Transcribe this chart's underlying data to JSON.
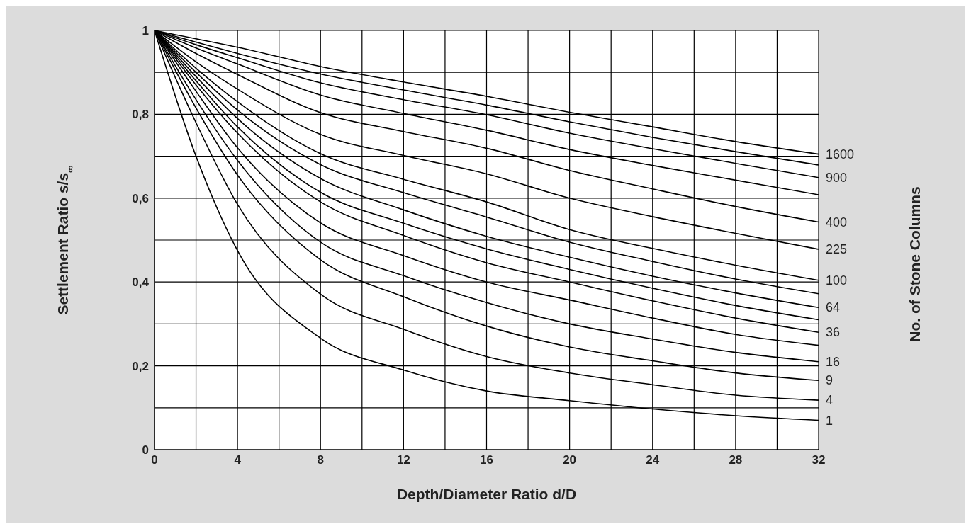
{
  "chart_data": {
    "type": "line",
    "xlabel": "Depth/Diameter Ratio d/D",
    "ylabel": "Settlement Ratio s/s$_{∞}$",
    "legend_title": "No. of Stone Columns",
    "x": [
      0,
      2,
      4,
      8,
      12,
      16,
      20,
      24,
      28,
      32
    ],
    "series": [
      {
        "name": "1600",
        "color": "#000000",
        "values": [
          1,
          0.98,
          0.96,
          0.914,
          0.877,
          0.843,
          0.805,
          0.77,
          0.735,
          0.705
        ]
      },
      {
        "color": "#000000",
        "values": [
          1,
          0.972,
          0.945,
          0.896,
          0.858,
          0.822,
          0.782,
          0.745,
          0.711,
          0.679
        ]
      },
      {
        "name": "900",
        "color": "#000000",
        "values": [
          1,
          0.966,
          0.935,
          0.875,
          0.835,
          0.799,
          0.755,
          0.718,
          0.683,
          0.649
        ]
      },
      {
        "color": "#000000",
        "values": [
          1,
          0.958,
          0.92,
          0.846,
          0.802,
          0.762,
          0.716,
          0.678,
          0.643,
          0.608
        ]
      },
      {
        "name": "400",
        "color": "#000000",
        "values": [
          1,
          0.945,
          0.895,
          0.804,
          0.759,
          0.719,
          0.666,
          0.622,
          0.58,
          0.543
        ]
      },
      {
        "name": "225",
        "color": "#000000",
        "values": [
          1,
          0.925,
          0.86,
          0.752,
          0.702,
          0.658,
          0.6,
          0.556,
          0.516,
          0.478
        ]
      },
      {
        "name": "100",
        "color": "#000000",
        "values": [
          1,
          0.91,
          0.83,
          0.706,
          0.645,
          0.591,
          0.525,
          0.48,
          0.44,
          0.404
        ]
      },
      {
        "color": "#000000",
        "values": [
          1,
          0.9,
          0.81,
          0.68,
          0.613,
          0.555,
          0.495,
          0.449,
          0.407,
          0.372
        ]
      },
      {
        "name": "64",
        "color": "#000000",
        "values": [
          1,
          0.89,
          0.79,
          0.647,
          0.572,
          0.509,
          0.459,
          0.414,
          0.374,
          0.339
        ]
      },
      {
        "color": "#000000",
        "values": [
          1,
          0.88,
          0.77,
          0.614,
          0.54,
          0.479,
          0.43,
          0.385,
          0.344,
          0.31
        ]
      },
      {
        "name": "36",
        "color": "#000000",
        "values": [
          1,
          0.87,
          0.755,
          0.591,
          0.511,
          0.446,
          0.4,
          0.355,
          0.314,
          0.28
        ]
      },
      {
        "color": "#000000",
        "values": [
          1,
          0.855,
          0.72,
          0.541,
          0.463,
          0.4,
          0.357,
          0.314,
          0.275,
          0.249
        ]
      },
      {
        "name": "16",
        "color": "#000000",
        "values": [
          1,
          0.835,
          0.69,
          0.495,
          0.415,
          0.351,
          0.3,
          0.264,
          0.232,
          0.21
        ]
      },
      {
        "name": "9",
        "color": "#000000",
        "values": [
          1,
          0.815,
          0.655,
          0.453,
          0.365,
          0.295,
          0.245,
          0.212,
          0.183,
          0.165
        ]
      },
      {
        "name": "4",
        "color": "#000000",
        "values": [
          1,
          0.78,
          0.585,
          0.371,
          0.287,
          0.222,
          0.183,
          0.155,
          0.13,
          0.118
        ]
      },
      {
        "name": "1",
        "color": "#000000",
        "values": [
          1,
          0.7,
          0.475,
          0.266,
          0.19,
          0.14,
          0.117,
          0.097,
          0.081,
          0.07
        ]
      }
    ],
    "xlim": [
      0,
      32
    ],
    "xticks": [
      0,
      {
        "value": 2,
        "label": null
      },
      4,
      {
        "value": 6,
        "label": null
      },
      8,
      {
        "value": 10,
        "label": null
      },
      12,
      {
        "value": 14,
        "label": null
      },
      16,
      {
        "value": 18,
        "label": null
      },
      20,
      {
        "value": 22,
        "label": null
      },
      24,
      {
        "value": 26,
        "label": null
      },
      28,
      {
        "value": 30,
        "label": null
      },
      32
    ],
    "ylim": [
      0,
      1
    ],
    "yticks": [
      {
        "value": 0,
        "label": "0"
      },
      {
        "value": 0.1,
        "label": null
      },
      {
        "value": 0.2,
        "label": "0,2"
      },
      {
        "value": 0.3,
        "label": null
      },
      {
        "value": 0.4,
        "label": "0,4"
      },
      {
        "value": 0.5,
        "label": null
      },
      {
        "value": 0.6,
        "label": "0,6"
      },
      {
        "value": 0.7,
        "label": null
      },
      {
        "value": 0.8,
        "label": "0,8"
      },
      {
        "value": 0.9,
        "label": null
      },
      {
        "value": 1,
        "label": "1"
      }
    ],
    "grid": true
  }
}
